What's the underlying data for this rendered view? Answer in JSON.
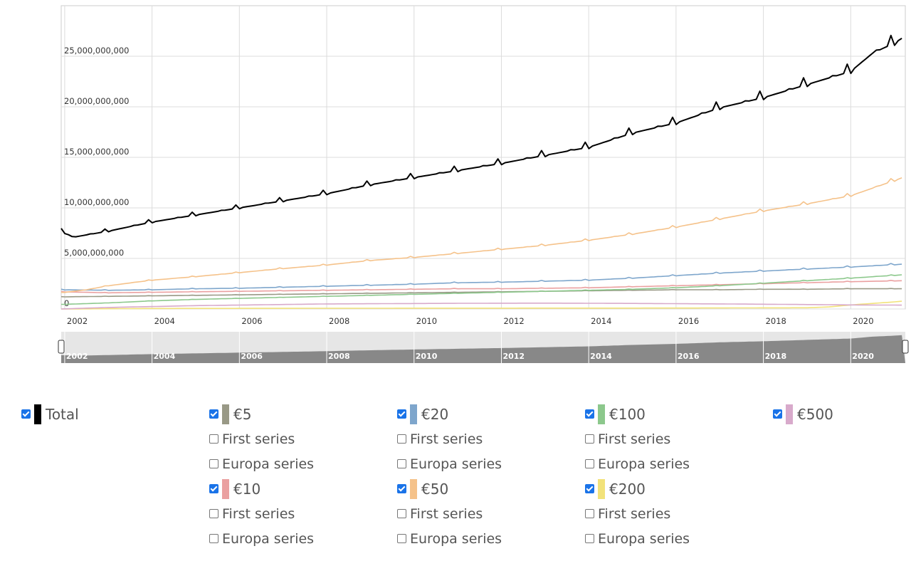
{
  "chart_data": {
    "type": "line",
    "x_start": 2001.92,
    "x_end": 2021.25,
    "xlim": [
      2001.92,
      2021.25
    ],
    "ylim": [
      0,
      30000000000
    ],
    "y_ticks": [
      {
        "value": 0,
        "label": "0"
      },
      {
        "value": 5000000000,
        "label": "5,000,000,000"
      },
      {
        "value": 10000000000,
        "label": "10,000,000,000"
      },
      {
        "value": 15000000000,
        "label": "15,000,000,000"
      },
      {
        "value": 20000000000,
        "label": "20,000,000,000"
      },
      {
        "value": 25000000000,
        "label": "25,000,000,000"
      }
    ],
    "x_ticks": [
      {
        "value": 2002,
        "label": "2002"
      },
      {
        "value": 2004,
        "label": "2004"
      },
      {
        "value": 2006,
        "label": "2006"
      },
      {
        "value": 2008,
        "label": "2008"
      },
      {
        "value": 2010,
        "label": "2010"
      },
      {
        "value": 2012,
        "label": "2012"
      },
      {
        "value": 2014,
        "label": "2014"
      },
      {
        "value": 2016,
        "label": "2016"
      },
      {
        "value": 2018,
        "label": "2018"
      },
      {
        "value": 2020,
        "label": "2020"
      }
    ],
    "grid": true,
    "series": [
      {
        "name": "Total",
        "color": "#000000",
        "seasonal": 0.035,
        "values": [
          [
            2001.92,
            7700000000
          ],
          [
            2002.2,
            7100000000
          ],
          [
            2003,
            7700000000
          ],
          [
            2004,
            8600000000
          ],
          [
            2005,
            9300000000
          ],
          [
            2006,
            10000000000
          ],
          [
            2007,
            10700000000
          ],
          [
            2008,
            11400000000
          ],
          [
            2009,
            12300000000
          ],
          [
            2010,
            13000000000
          ],
          [
            2011,
            13700000000
          ],
          [
            2012,
            14400000000
          ],
          [
            2013,
            15200000000
          ],
          [
            2014,
            16000000000
          ],
          [
            2015,
            17400000000
          ],
          [
            2016,
            18400000000
          ],
          [
            2017,
            19900000000
          ],
          [
            2018,
            20900000000
          ],
          [
            2019,
            22200000000
          ],
          [
            2020,
            23500000000
          ],
          [
            2020.5,
            25300000000
          ],
          [
            2021,
            26300000000
          ],
          [
            2021.25,
            27000000000
          ]
        ]
      },
      {
        "name": "€50",
        "color": "#f5c28a",
        "seasonal": 0.025,
        "values": [
          [
            2001.92,
            1600000000
          ],
          [
            2002.5,
            1900000000
          ],
          [
            2003,
            2300000000
          ],
          [
            2004,
            2850000000
          ],
          [
            2005,
            3200000000
          ],
          [
            2006,
            3600000000
          ],
          [
            2007,
            4000000000
          ],
          [
            2008,
            4350000000
          ],
          [
            2009,
            4800000000
          ],
          [
            2010,
            5100000000
          ],
          [
            2011,
            5500000000
          ],
          [
            2012,
            5900000000
          ],
          [
            2013,
            6300000000
          ],
          [
            2014,
            6800000000
          ],
          [
            2015,
            7400000000
          ],
          [
            2016,
            8100000000
          ],
          [
            2017,
            8900000000
          ],
          [
            2018,
            9700000000
          ],
          [
            2019,
            10400000000
          ],
          [
            2020,
            11200000000
          ],
          [
            2021,
            12700000000
          ],
          [
            2021.25,
            13100000000
          ]
        ]
      },
      {
        "name": "€20",
        "color": "#7ea6cc",
        "seasonal": 0.03,
        "values": [
          [
            2001.92,
            1900000000
          ],
          [
            2003,
            1850000000
          ],
          [
            2004,
            1900000000
          ],
          [
            2005,
            2000000000
          ],
          [
            2006,
            2050000000
          ],
          [
            2007,
            2150000000
          ],
          [
            2008,
            2250000000
          ],
          [
            2009,
            2350000000
          ],
          [
            2010,
            2450000000
          ],
          [
            2011,
            2600000000
          ],
          [
            2012,
            2650000000
          ],
          [
            2013,
            2750000000
          ],
          [
            2014,
            2850000000
          ],
          [
            2015,
            3050000000
          ],
          [
            2016,
            3300000000
          ],
          [
            2017,
            3550000000
          ],
          [
            2018,
            3750000000
          ],
          [
            2019,
            3950000000
          ],
          [
            2020,
            4150000000
          ],
          [
            2021.25,
            4450000000
          ]
        ]
      },
      {
        "name": "€100",
        "color": "#8cc88c",
        "seasonal": 0.02,
        "values": [
          [
            2001.92,
            450000000
          ],
          [
            2003,
            600000000
          ],
          [
            2004,
            800000000
          ],
          [
            2005,
            950000000
          ],
          [
            2006,
            1050000000
          ],
          [
            2007,
            1150000000
          ],
          [
            2008,
            1250000000
          ],
          [
            2009,
            1350000000
          ],
          [
            2010,
            1450000000
          ],
          [
            2011,
            1550000000
          ],
          [
            2012,
            1650000000
          ],
          [
            2013,
            1750000000
          ],
          [
            2014,
            1850000000
          ],
          [
            2015,
            1950000000
          ],
          [
            2016,
            2100000000
          ],
          [
            2017,
            2300000000
          ],
          [
            2018,
            2550000000
          ],
          [
            2019,
            2800000000
          ],
          [
            2020,
            3050000000
          ],
          [
            2021.25,
            3400000000
          ]
        ]
      },
      {
        "name": "€10",
        "color": "#eaa0a0",
        "seasonal": 0.02,
        "values": [
          [
            2001.92,
            1700000000
          ],
          [
            2003,
            1600000000
          ],
          [
            2004,
            1650000000
          ],
          [
            2005,
            1700000000
          ],
          [
            2006,
            1750000000
          ],
          [
            2007,
            1800000000
          ],
          [
            2008,
            1850000000
          ],
          [
            2009,
            1900000000
          ],
          [
            2010,
            1950000000
          ],
          [
            2011,
            2000000000
          ],
          [
            2012,
            2000000000
          ],
          [
            2013,
            2050000000
          ],
          [
            2014,
            2100000000
          ],
          [
            2015,
            2200000000
          ],
          [
            2016,
            2300000000
          ],
          [
            2017,
            2400000000
          ],
          [
            2018,
            2500000000
          ],
          [
            2019,
            2600000000
          ],
          [
            2020,
            2700000000
          ],
          [
            2021.25,
            2800000000
          ]
        ]
      },
      {
        "name": "€5",
        "color": "#999986",
        "seasonal": 0.015,
        "values": [
          [
            2001.92,
            1200000000
          ],
          [
            2003,
            1250000000
          ],
          [
            2004,
            1300000000
          ],
          [
            2005,
            1350000000
          ],
          [
            2006,
            1400000000
          ],
          [
            2007,
            1450000000
          ],
          [
            2008,
            1500000000
          ],
          [
            2009,
            1550000000
          ],
          [
            2010,
            1600000000
          ],
          [
            2011,
            1650000000
          ],
          [
            2012,
            1700000000
          ],
          [
            2013,
            1750000000
          ],
          [
            2014,
            1800000000
          ],
          [
            2015,
            1850000000
          ],
          [
            2016,
            1900000000
          ],
          [
            2017,
            1900000000
          ],
          [
            2018,
            1950000000
          ],
          [
            2019,
            1950000000
          ],
          [
            2020,
            2000000000
          ],
          [
            2021.25,
            2000000000
          ]
        ]
      },
      {
        "name": "€500",
        "color": "#d8aacb",
        "seasonal": 0,
        "values": [
          [
            2001.92,
            0
          ],
          [
            2003,
            150000000
          ],
          [
            2005,
            330000000
          ],
          [
            2008,
            500000000
          ],
          [
            2011,
            560000000
          ],
          [
            2013,
            580000000
          ],
          [
            2015,
            550000000
          ],
          [
            2017,
            500000000
          ],
          [
            2019,
            440000000
          ],
          [
            2020,
            400000000
          ],
          [
            2021.25,
            380000000
          ]
        ]
      },
      {
        "name": "€200",
        "color": "#f2e27a",
        "seasonal": 0,
        "values": [
          [
            2001.92,
            0
          ],
          [
            2004,
            50000000
          ],
          [
            2008,
            70000000
          ],
          [
            2012,
            80000000
          ],
          [
            2016,
            90000000
          ],
          [
            2019,
            120000000
          ],
          [
            2019.5,
            200000000
          ],
          [
            2020,
            400000000
          ],
          [
            2021,
            700000000
          ],
          [
            2021.25,
            800000000
          ]
        ]
      }
    ],
    "navigator": {
      "ticks": [
        "2002",
        "2004",
        "2006",
        "2008",
        "2010",
        "2012",
        "2014",
        "2016",
        "2018",
        "2020"
      ]
    }
  },
  "legend": {
    "total": {
      "label": "Total",
      "color": "#000000",
      "checked": true
    },
    "groups": [
      {
        "label": "€5",
        "color": "#999986",
        "checked": true,
        "sub": [
          {
            "label": "First series",
            "checked": false
          },
          {
            "label": "Europa series",
            "checked": false
          }
        ]
      },
      {
        "label": "€10",
        "color": "#eaa0a0",
        "checked": true,
        "sub": [
          {
            "label": "First series",
            "checked": false
          },
          {
            "label": "Europa series",
            "checked": false
          }
        ]
      },
      {
        "label": "€20",
        "color": "#7ea6cc",
        "checked": true,
        "sub": [
          {
            "label": "First series",
            "checked": false
          },
          {
            "label": "Europa series",
            "checked": false
          }
        ]
      },
      {
        "label": "€50",
        "color": "#f5c28a",
        "checked": true,
        "sub": [
          {
            "label": "First series",
            "checked": false
          },
          {
            "label": "Europa series",
            "checked": false
          }
        ]
      },
      {
        "label": "€100",
        "color": "#8cc88c",
        "checked": true,
        "sub": [
          {
            "label": "First series",
            "checked": false
          },
          {
            "label": "Europa series",
            "checked": false
          }
        ]
      },
      {
        "label": "€200",
        "color": "#f2e27a",
        "checked": true,
        "sub": [
          {
            "label": "First series",
            "checked": false
          },
          {
            "label": "Europa series",
            "checked": false
          }
        ]
      },
      {
        "label": "€500",
        "color": "#d8aacb",
        "checked": true,
        "sub": []
      }
    ]
  }
}
